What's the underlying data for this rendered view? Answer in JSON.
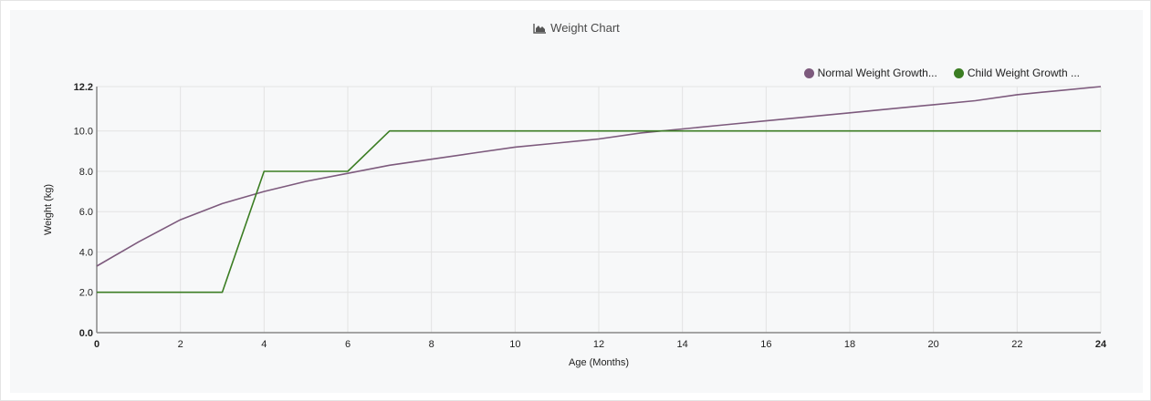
{
  "header": {
    "title": "Weight Chart",
    "icon": "area-chart-icon"
  },
  "chart_data": {
    "type": "line",
    "title": "Weight Chart",
    "xlabel": "Age (Months)",
    "ylabel": "Weight (kg)",
    "xlim": [
      0,
      24
    ],
    "ylim": [
      0,
      12.2
    ],
    "x_ticks": [
      "0",
      "2",
      "4",
      "6",
      "8",
      "10",
      "12",
      "14",
      "16",
      "18",
      "20",
      "22",
      "24"
    ],
    "y_ticks": [
      "0.0",
      "2.0",
      "4.0",
      "6.0",
      "8.0",
      "10.0",
      "12.2"
    ],
    "grid": true,
    "legend_position": "top-right",
    "series": [
      {
        "name": "Normal Weight Growth...",
        "color": "#7d5a7d",
        "x": [
          0,
          1,
          2,
          3,
          4,
          5,
          6,
          7,
          8,
          9,
          10,
          11,
          12,
          13,
          14,
          15,
          16,
          17,
          18,
          19,
          20,
          21,
          22,
          23,
          24
        ],
        "y": [
          3.3,
          4.5,
          5.6,
          6.4,
          7.0,
          7.5,
          7.9,
          8.3,
          8.6,
          8.9,
          9.2,
          9.4,
          9.6,
          9.9,
          10.1,
          10.3,
          10.5,
          10.7,
          10.9,
          11.1,
          11.3,
          11.5,
          11.8,
          12.0,
          12.2
        ]
      },
      {
        "name": "Child Weight Growth ...",
        "color": "#3b7d23",
        "x": [
          0,
          1,
          2,
          3,
          4,
          5,
          6,
          7,
          8,
          9,
          10,
          11,
          12,
          13,
          14,
          15,
          16,
          17,
          18,
          19,
          20,
          21,
          22,
          23,
          24
        ],
        "y": [
          2,
          2,
          2,
          2,
          8,
          8,
          8,
          10,
          10,
          10,
          10,
          10,
          10,
          10,
          10,
          10,
          10,
          10,
          10,
          10,
          10,
          10,
          10,
          10,
          10
        ]
      }
    ]
  }
}
